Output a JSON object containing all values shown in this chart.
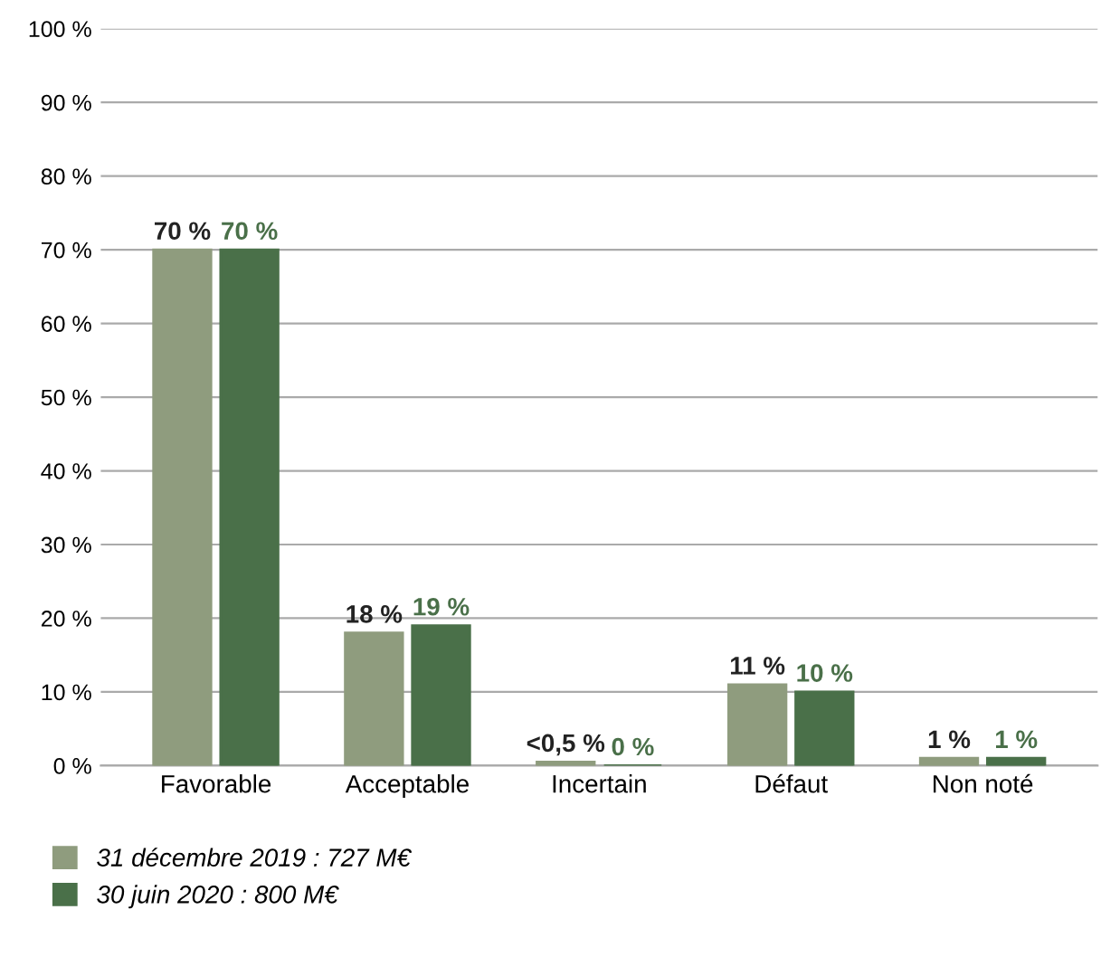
{
  "chart_data": {
    "type": "bar",
    "categories": [
      "Favorable",
      "Acceptable",
      "Incertain",
      "Défaut",
      "Non noté"
    ],
    "series": [
      {
        "name": "31 décembre 2019 : 727 M€",
        "color": "#8f9c7e",
        "values": [
          70,
          18,
          0.5,
          11,
          1
        ],
        "value_labels": [
          "70 %",
          "18 %",
          "<0,5 %",
          "11 %",
          "1 %"
        ]
      },
      {
        "name": "30 juin 2020 : 800 M€",
        "color": "#4a7049",
        "values": [
          70,
          19,
          0,
          10,
          1
        ],
        "value_labels": [
          "70 %",
          "19 %",
          "0 %",
          "10 %",
          "1 %"
        ]
      }
    ],
    "ylim": [
      0,
      100
    ],
    "yticks": [
      {
        "value": 0,
        "label": "0 %"
      },
      {
        "value": 10,
        "label": "10 %"
      },
      {
        "value": 20,
        "label": "20 %"
      },
      {
        "value": 30,
        "label": "30 %"
      },
      {
        "value": 40,
        "label": "40 %"
      },
      {
        "value": 50,
        "label": "50 %"
      },
      {
        "value": 60,
        "label": "60 %"
      },
      {
        "value": 70,
        "label": "70 %"
      },
      {
        "value": 80,
        "label": "80 %"
      },
      {
        "value": 90,
        "label": "90 %"
      },
      {
        "value": 100,
        "label": "100 %"
      }
    ],
    "grid": "y",
    "legend": "bottom left"
  }
}
